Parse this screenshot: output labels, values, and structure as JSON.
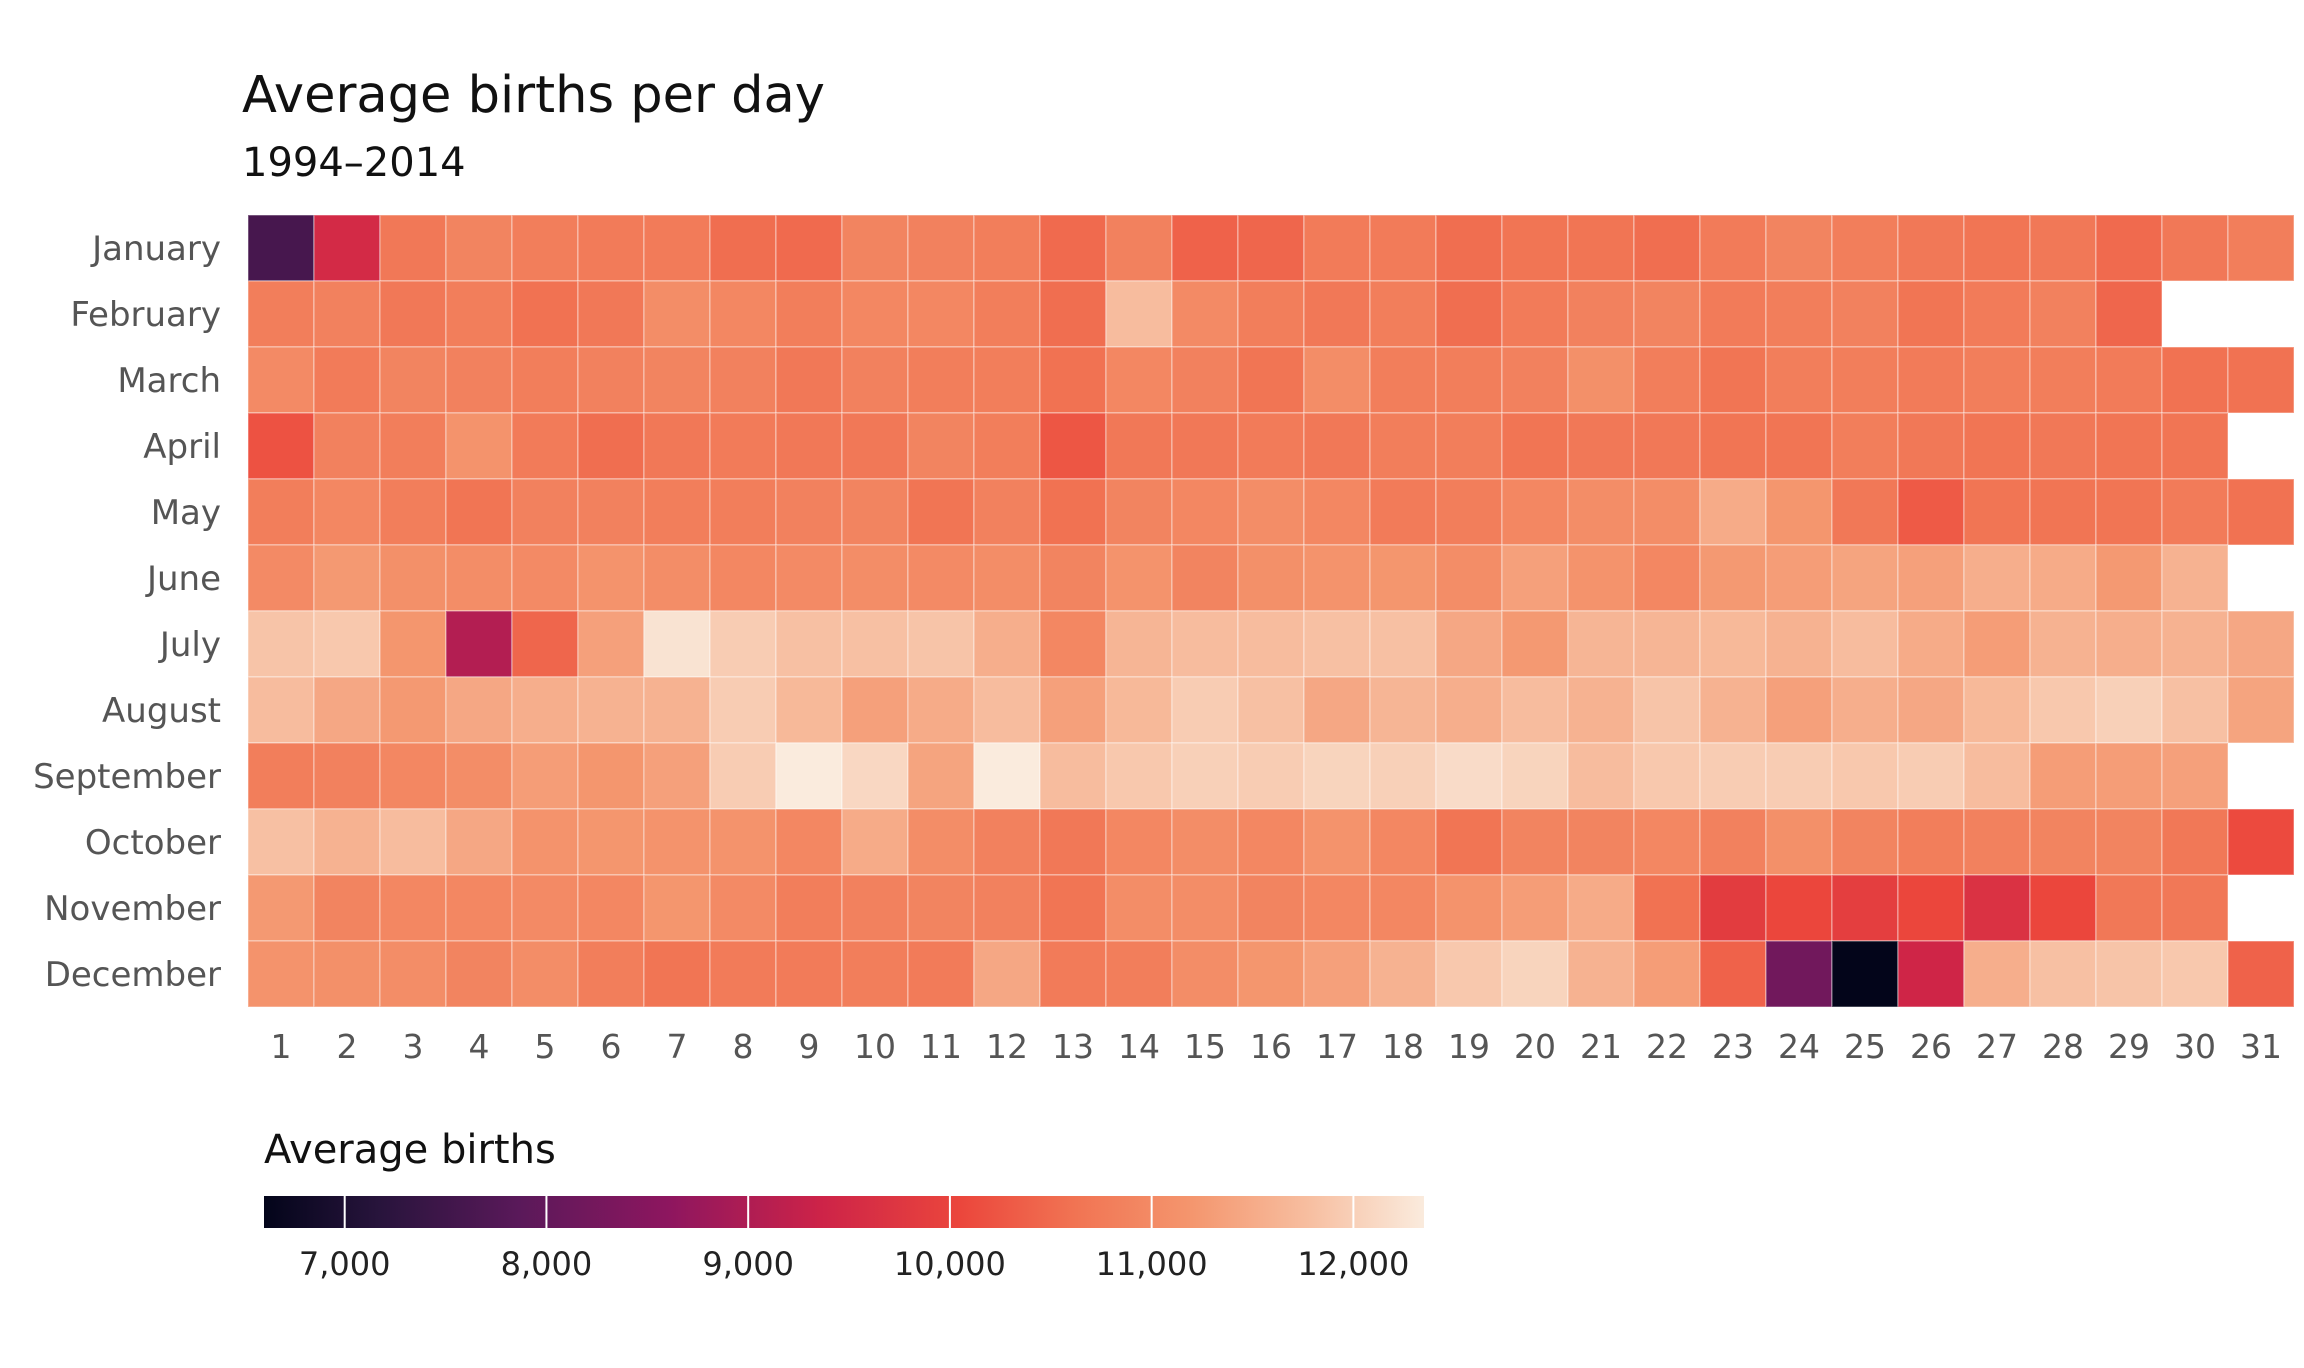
{
  "chart_data": {
    "type": "heatmap",
    "title": "Average births per day",
    "subtitle": "1994–2014",
    "y_categories": [
      "January",
      "February",
      "March",
      "April",
      "May",
      "June",
      "July",
      "August",
      "September",
      "October",
      "November",
      "December"
    ],
    "x_categories": [
      "1",
      "2",
      "3",
      "4",
      "5",
      "6",
      "7",
      "8",
      "9",
      "10",
      "11",
      "12",
      "13",
      "14",
      "15",
      "16",
      "17",
      "18",
      "19",
      "20",
      "21",
      "22",
      "23",
      "24",
      "25",
      "26",
      "27",
      "28",
      "29",
      "30",
      "31"
    ],
    "values": [
      [
        7600,
        9500,
        10700,
        10900,
        10800,
        10750,
        10750,
        10550,
        10500,
        10900,
        10850,
        10800,
        10500,
        10850,
        10400,
        10450,
        10750,
        10750,
        10550,
        10650,
        10650,
        10550,
        10750,
        10900,
        10800,
        10700,
        10650,
        10700,
        10500,
        10700,
        10800
      ],
      [
        10800,
        10850,
        10700,
        10800,
        10600,
        10700,
        11050,
        10950,
        10800,
        10950,
        10950,
        10800,
        10550,
        11750,
        11000,
        10800,
        10700,
        10800,
        10550,
        10750,
        10850,
        10900,
        10750,
        10800,
        10850,
        10650,
        10750,
        10850,
        10450,
        null,
        null
      ],
      [
        11000,
        10750,
        10900,
        10850,
        10800,
        10850,
        10900,
        10850,
        10700,
        10850,
        10800,
        10800,
        10600,
        10950,
        10850,
        10650,
        11050,
        10800,
        10800,
        10850,
        11100,
        10800,
        10650,
        10800,
        10800,
        10750,
        10800,
        10800,
        10750,
        10600,
        10600
      ],
      [
        10200,
        10850,
        10800,
        11150,
        10750,
        10550,
        10700,
        10750,
        10700,
        10700,
        10900,
        10800,
        10250,
        10700,
        10700,
        10750,
        10700,
        10800,
        10800,
        10650,
        10700,
        10700,
        10650,
        10650,
        10800,
        10700,
        10650,
        10700,
        10650,
        10650,
        null
      ],
      [
        10800,
        10950,
        10800,
        10650,
        10850,
        10850,
        10800,
        10800,
        10850,
        10900,
        10650,
        10850,
        10600,
        10900,
        10950,
        11050,
        10950,
        10750,
        10800,
        10950,
        11050,
        11050,
        11500,
        11200,
        10700,
        10300,
        10650,
        10650,
        10650,
        10750,
        10600
      ],
      [
        11000,
        11250,
        11100,
        11050,
        11000,
        11150,
        11050,
        10950,
        11000,
        11050,
        11000,
        11050,
        10900,
        11150,
        10900,
        11100,
        11150,
        11200,
        11050,
        11350,
        11150,
        10950,
        11250,
        11300,
        11400,
        11350,
        11550,
        11500,
        11250,
        11600,
        null
      ],
      [
        11850,
        11900,
        11200,
        9050,
        10450,
        11350,
        12250,
        11950,
        11800,
        11800,
        11850,
        11550,
        10950,
        11650,
        11750,
        11750,
        11800,
        11800,
        11450,
        11250,
        11650,
        11650,
        11700,
        11600,
        11750,
        11500,
        11300,
        11600,
        11550,
        11600,
        11450
      ],
      [
        11750,
        11450,
        11250,
        11450,
        11550,
        11600,
        11600,
        11950,
        11700,
        11350,
        11500,
        11750,
        11350,
        11700,
        11950,
        11800,
        11450,
        11650,
        11550,
        11750,
        11600,
        11850,
        11600,
        11350,
        11550,
        11450,
        11700,
        11900,
        12000,
        11800,
        11400
      ],
      [
        10800,
        10850,
        10950,
        11050,
        11300,
        11200,
        11350,
        11950,
        12350,
        12100,
        11400,
        12350,
        11750,
        11900,
        12000,
        11950,
        12050,
        12000,
        12150,
        12050,
        11750,
        11900,
        11950,
        11950,
        11900,
        11950,
        11750,
        11300,
        11300,
        11350,
        null
      ],
      [
        11800,
        11600,
        11750,
        11450,
        11150,
        11200,
        11150,
        11150,
        10950,
        11500,
        11050,
        10850,
        10700,
        10950,
        11050,
        10950,
        11150,
        10950,
        10650,
        10900,
        10900,
        10950,
        10850,
        11100,
        10900,
        10800,
        10850,
        10900,
        10900,
        10700,
        10100
      ],
      [
        11250,
        10900,
        10950,
        10950,
        11000,
        10950,
        11200,
        11000,
        10800,
        10850,
        10900,
        10850,
        10650,
        11050,
        11050,
        10900,
        10950,
        10950,
        11150,
        11300,
        11500,
        10600,
        9850,
        10050,
        9900,
        10050,
        9650,
        10050,
        10700,
        10700,
        null
      ],
      [
        11150,
        11100,
        11050,
        10900,
        11050,
        10800,
        10650,
        10750,
        10750,
        10800,
        10750,
        11450,
        10750,
        10800,
        11050,
        11200,
        11350,
        11600,
        11900,
        12050,
        11600,
        11300,
        10400,
        8200,
        6600,
        9400,
        11550,
        11800,
        11850,
        11900,
        10400
      ]
    ],
    "colorscale": "rocket",
    "colorbar_range": [
      6600,
      12350
    ],
    "legend": {
      "title": "Average births",
      "placement": "bottom-left",
      "ticks": [
        7000,
        8000,
        9000,
        10000,
        11000,
        12000
      ],
      "tick_labels": [
        "7,000",
        "8,000",
        "9,000",
        "10,000",
        "11,000",
        "12,000"
      ]
    },
    "grid": false
  }
}
